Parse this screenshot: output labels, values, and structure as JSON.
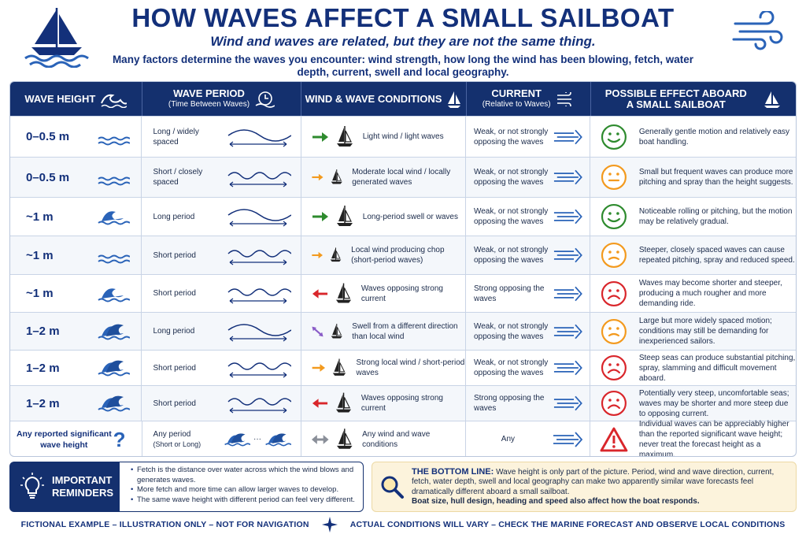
{
  "header": {
    "title": "HOW WAVES AFFECT A SMALL SAILBOAT",
    "subtitle": "Wind and waves are related, but they are not the same thing.",
    "intro": "Many factors determine the waves you encounter: wind strength, how long the wind has been blowing, fetch, water depth, current, swell and local geography."
  },
  "table": {
    "headers": {
      "height": "WAVE HEIGHT",
      "period": "WAVE PERIOD",
      "period_sub": "(Time Between Waves)",
      "conditions": "WIND & WAVE CONDITIONS",
      "current": "CURRENT",
      "current_sub": "(Relative to Waves)",
      "effect_line1": "POSSIBLE EFFECT ABOARD",
      "effect_line2": "A SMALL SAILBOAT"
    },
    "rows": [
      {
        "height": "0–0.5 m",
        "period": "Long / widely spaced",
        "conditions": "Light wind / light waves",
        "current": "Weak, or not strongly opposing the waves",
        "effect": "Generally gentle motion and relatively easy boat handling.",
        "arrow": "green-right",
        "face": "happy"
      },
      {
        "height": "0–0.5 m",
        "period": "Short / closely spaced",
        "conditions": "Moderate local wind / locally generated waves",
        "current": "Weak, or not strongly opposing the waves",
        "effect": "Small but frequent waves can produce more pitching and spray than the height suggests.",
        "arrow": "orange-right",
        "face": "neutral"
      },
      {
        "height": "~1 m",
        "period": "Long period",
        "conditions": "Long-period swell or waves",
        "current": "Weak, or not strongly opposing the waves",
        "effect": "Noticeable rolling or pitching, but the motion may be relatively gradual.",
        "arrow": "green-right",
        "face": "happy"
      },
      {
        "height": "~1 m",
        "period": "Short period",
        "conditions": "Local wind producing chop (short-period waves)",
        "current": "Weak, or not strongly opposing the waves",
        "effect": "Steeper, closely spaced waves can cause repeated pitching, spray and reduced speed.",
        "arrow": "orange-right",
        "face": "worried"
      },
      {
        "height": "~1 m",
        "period": "Short period",
        "conditions": "Waves opposing strong current",
        "current": "Strong opposing the waves",
        "effect": "Waves may become shorter and steeper, producing a much rougher and more demanding ride.",
        "arrow": "red-left",
        "face": "sad"
      },
      {
        "height": "1–2 m",
        "period": "Long period",
        "conditions": "Swell from a different direction than local wind",
        "current": "Weak, or not strongly opposing the waves",
        "effect": "Large but more widely spaced motion; conditions may still be demanding for inexperienced sailors.",
        "arrow": "purple-diag",
        "face": "worried"
      },
      {
        "height": "1–2 m",
        "period": "Short period",
        "conditions": "Strong local wind / short-period waves",
        "current": "Weak, or not strongly opposing the waves",
        "effect": "Steep seas can produce substantial pitching, spray, slamming and difficult movement aboard.",
        "arrow": "orange-right",
        "face": "sad"
      },
      {
        "height": "1–2 m",
        "period": "Short period",
        "conditions": "Waves opposing strong current",
        "current": "Strong opposing the waves",
        "effect": "Potentially very steep, uncomfortable seas; waves may be shorter and more steep due to opposing current.",
        "arrow": "red-left",
        "face": "sad"
      },
      {
        "height": "Any reported significant wave height",
        "period": "Any period",
        "period_sub": "(Short or Long)",
        "conditions": "Any wind and wave conditions",
        "current": "Any",
        "effect": "Individual waves can be appreciably higher than the reported significant wave height; never treat the forecast height as a maximum.",
        "arrow": "gray-both",
        "face": "warning"
      }
    ]
  },
  "reminders": {
    "label_line1": "IMPORTANT",
    "label_line2": "REMINDERS",
    "items": [
      "Fetch is the distance over water across which the wind blows and generates waves.",
      "More fetch and more time can allow larger waves to develop.",
      "The same wave height with different period can feel very different."
    ]
  },
  "bottom_line": {
    "title": "THE BOTTOM LINE:",
    "text": "Wave height is only part of the picture. Period, wind and wave direction, current, fetch, water depth, swell and local geography can make two apparently similar wave forecasts feel dramatically different aboard a small sailboat.",
    "bold": "Boat size, hull design, heading and speed also affect how the boat responds."
  },
  "footer": {
    "left": "FICTIONAL EXAMPLE – ILLUSTRATION ONLY – NOT FOR NAVIGATION",
    "right": "ACTUAL CONDITIONS WILL VARY – CHECK THE MARINE FORECAST AND OBSERVE LOCAL CONDITIONS"
  },
  "colors": {
    "navy": "#14306e",
    "blue": "#2a63b8",
    "green": "#2e8b2e",
    "orange": "#f39a1e",
    "red": "#d9262b",
    "purple": "#8a5cc7"
  },
  "icons": [
    "sailboat-logo-icon",
    "wind-icon",
    "wave-icon",
    "tsunami-wave-icon",
    "sailboat-icon",
    "current-icon",
    "smiley-face-icon",
    "warning-triangle-icon",
    "lightbulb-icon",
    "magnifier-icon",
    "compass-rose-icon",
    "question-mark-icon"
  ]
}
